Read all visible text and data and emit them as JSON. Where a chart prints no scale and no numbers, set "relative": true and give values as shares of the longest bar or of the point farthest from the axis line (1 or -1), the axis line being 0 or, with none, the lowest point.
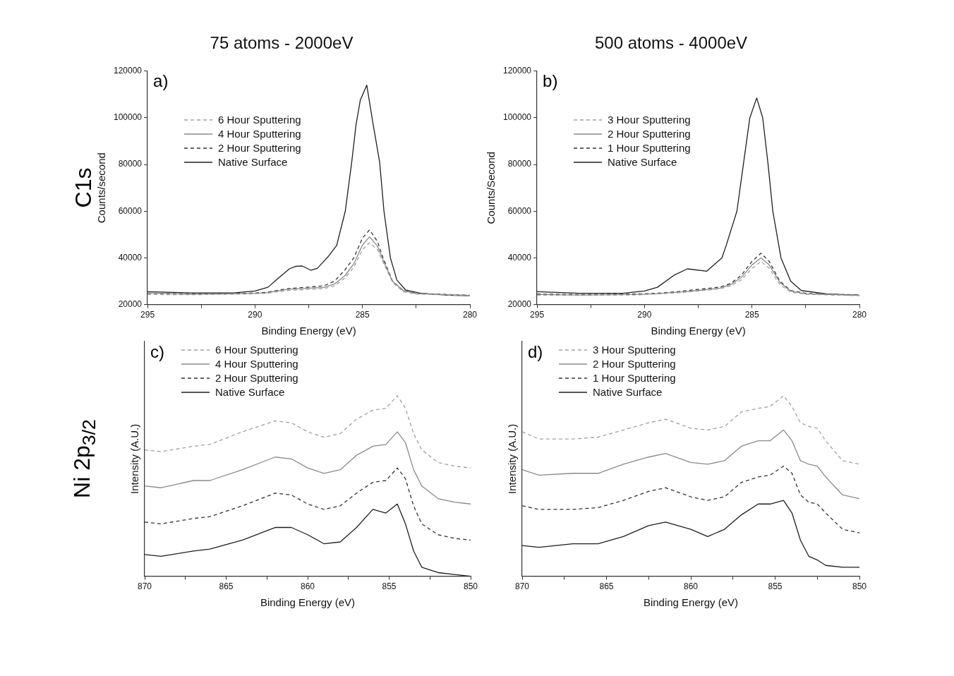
{
  "chart_data": [
    {
      "type": "line",
      "title": "75 atoms - 2000eV",
      "xlabel": "Binding Energy (eV)",
      "ylabel": "Counts/second",
      "annotations": [
        "a)",
        "C1s"
      ],
      "xlim": [
        295,
        280
      ],
      "xticks": [
        295,
        {
          "value": 292.5,
          "label": null
        },
        290,
        {
          "value": 287.5,
          "label": null
        },
        285,
        {
          "value": 282.5,
          "label": null
        },
        280
      ],
      "ylim": [
        20000,
        120000
      ],
      "yticks": [
        20000,
        40000,
        60000,
        80000,
        100000,
        120000
      ],
      "grid": false,
      "legend": "top left",
      "marker": "none",
      "series": [
        {
          "name": "6 Hour Sputtering",
          "color": "#a0a0a0",
          "line_style": "dashed",
          "x": [
            295,
            293,
            290.5,
            289.5,
            288.5,
            287.5,
            286.8,
            286.3,
            285.8,
            285.4,
            285.0,
            284.67,
            284.3,
            284.04,
            283.6,
            283.1,
            282.5,
            281,
            280
          ],
          "values": [
            24300,
            24200,
            24500,
            24800,
            26000,
            26500,
            26800,
            28000,
            31500,
            36000,
            43500,
            46500,
            43500,
            38000,
            29500,
            25500,
            24500,
            24100,
            23800
          ]
        },
        {
          "name": "4 Hour Sputtering",
          "color": "#8a8a8a",
          "line_style": "solid",
          "x": [
            295,
            293,
            290.5,
            289.5,
            288.5,
            287.5,
            286.8,
            286.3,
            285.8,
            285.4,
            285.0,
            284.67,
            284.3,
            284.04,
            283.6,
            283.1,
            282.5,
            281,
            280
          ],
          "values": [
            25000,
            24400,
            24700,
            25000,
            26500,
            27000,
            27300,
            28800,
            32500,
            37500,
            45500,
            49000,
            45000,
            39000,
            30000,
            26000,
            24700,
            24200,
            23900
          ]
        },
        {
          "name": "2 Hour Sputtering",
          "color": "#333333",
          "line_style": "dashed",
          "x": [
            295,
            293,
            290.5,
            289.5,
            288.5,
            287.5,
            286.8,
            286.3,
            285.8,
            285.4,
            285.0,
            284.67,
            284.3,
            284.04,
            283.6,
            283.1,
            282.5,
            281,
            280
          ],
          "values": [
            24800,
            24600,
            24800,
            25200,
            26800,
            27500,
            28000,
            30000,
            35000,
            40000,
            48500,
            52000,
            47000,
            40000,
            30000,
            26000,
            24800,
            24300,
            24000
          ]
        },
        {
          "name": "Native Surface",
          "color": "#1e1e1e",
          "line_style": "solid",
          "x": [
            295,
            293,
            291,
            290,
            289.4,
            289,
            288.4,
            288.1,
            287.8,
            287.4,
            287.1,
            286.8,
            286.6,
            286.2,
            285.8,
            285.5,
            285.3,
            285.1,
            284.8,
            284.5,
            284.2,
            284,
            283.7,
            283.4,
            283,
            282.3,
            281,
            280
          ],
          "values": [
            25500,
            25000,
            25000,
            25800,
            27400,
            30600,
            35300,
            36400,
            36500,
            34700,
            35500,
            38500,
            40500,
            45300,
            60000,
            81000,
            97000,
            107600,
            114000,
            97000,
            81000,
            60000,
            40000,
            30500,
            26300,
            24800,
            24000,
            23800
          ]
        }
      ]
    },
    {
      "type": "line",
      "title": "500 atoms - 4000eV",
      "xlabel": "Binding Energy (eV)",
      "ylabel": "Counts/Second",
      "annotations": [
        "b)"
      ],
      "xlim": [
        295,
        280
      ],
      "xticks": [
        295,
        {
          "value": 292.5,
          "label": null
        },
        290,
        {
          "value": 287.5,
          "label": null
        },
        285,
        {
          "value": 282.5,
          "label": null
        },
        280
      ],
      "ylim": [
        20000,
        120000
      ],
      "yticks": [
        20000,
        40000,
        60000,
        80000,
        100000,
        120000
      ],
      "grid": false,
      "legend": "top left",
      "marker": "none",
      "series": [
        {
          "name": "3 Hour Sputtering",
          "color": "#a0a0a0",
          "line_style": "dashed",
          "x": [
            295,
            293,
            290.5,
            289.5,
            288.5,
            287.5,
            286.5,
            286,
            285.5,
            285,
            284.58,
            284.2,
            283.7,
            283.2,
            282.5,
            281,
            280
          ],
          "values": [
            24000,
            23900,
            24100,
            24500,
            25000,
            25800,
            26700,
            28000,
            30500,
            35500,
            38500,
            35500,
            28500,
            25300,
            24400,
            24000,
            23800
          ]
        },
        {
          "name": "2 Hour Sputtering",
          "color": "#8a8a8a",
          "line_style": "solid",
          "x": [
            295,
            293,
            290.5,
            289.5,
            288.5,
            287.5,
            286.5,
            286,
            285.5,
            285,
            284.58,
            284.2,
            283.7,
            283.2,
            282.5,
            281,
            280
          ],
          "values": [
            24300,
            24100,
            24300,
            24600,
            25300,
            26000,
            27000,
            28500,
            31500,
            37000,
            40000,
            37000,
            29500,
            25800,
            24600,
            24200,
            24000
          ]
        },
        {
          "name": "1 Hour Sputtering",
          "color": "#333333",
          "line_style": "dashed",
          "x": [
            295,
            293,
            290.5,
            289.5,
            288.5,
            287.5,
            286.5,
            286,
            285.5,
            285,
            284.58,
            284.2,
            283.7,
            283.2,
            282.5,
            281,
            280
          ],
          "values": [
            24500,
            24300,
            24500,
            24800,
            25500,
            26500,
            27500,
            29000,
            32500,
            38500,
            42000,
            38500,
            30000,
            26000,
            24800,
            24300,
            24200
          ]
        },
        {
          "name": "Native Surface",
          "color": "#1e1e1e",
          "line_style": "solid",
          "x": [
            295,
            293,
            291,
            290,
            289.4,
            288.6,
            288,
            287.1,
            286.4,
            286.2,
            285.7,
            285.4,
            285.1,
            284.78,
            284.5,
            284.25,
            284.03,
            283.65,
            283.2,
            282.7,
            281.5,
            280
          ],
          "values": [
            25500,
            24800,
            24800,
            25800,
            27400,
            32700,
            35300,
            34300,
            40000,
            45300,
            60000,
            80000,
            100000,
            108500,
            100000,
            80000,
            60000,
            40000,
            30000,
            26000,
            24500,
            24000
          ]
        }
      ]
    },
    {
      "type": "line",
      "xlabel": "Binding Energy (eV)",
      "ylabel": "Intensity (A.U.)",
      "annotations": [
        "c)",
        "Ni 2p$_{3/2}$"
      ],
      "xlim": [
        870,
        850
      ],
      "xticks": [
        870,
        {
          "value": 867.5,
          "label": null
        },
        865,
        {
          "value": 862.5,
          "label": null
        },
        860,
        {
          "value": 857.5,
          "label": null
        },
        855,
        {
          "value": 852.5,
          "label": null
        },
        850
      ],
      "relative": true,
      "grid": false,
      "legend": "top left",
      "marker": "none",
      "x": [
        870,
        869,
        867,
        866,
        864,
        862,
        861,
        860,
        859,
        858,
        857,
        856,
        855.2,
        854.5,
        854,
        853.5,
        853,
        852,
        851,
        850
      ],
      "series": [
        {
          "name": "6 Hour Sputtering",
          "color": "#a0a0a0",
          "line_style": "dashed",
          "values": [
            0.7,
            0.69,
            0.72,
            0.73,
            0.8,
            0.86,
            0.85,
            0.8,
            0.77,
            0.79,
            0.87,
            0.92,
            0.93,
            1,
            0.93,
            0.79,
            0.7,
            0.63,
            0.61,
            0.6
          ]
        },
        {
          "name": "4 Hour Sputtering",
          "color": "#8a8a8a",
          "line_style": "solid",
          "values": [
            0.5,
            0.49,
            0.53,
            0.53,
            0.59,
            0.66,
            0.65,
            0.6,
            0.57,
            0.59,
            0.67,
            0.72,
            0.73,
            0.8,
            0.74,
            0.59,
            0.5,
            0.43,
            0.41,
            0.4
          ]
        },
        {
          "name": "2 Hour Sputtering",
          "color": "#333333",
          "line_style": "dashed",
          "values": [
            0.3,
            0.29,
            0.32,
            0.33,
            0.39,
            0.46,
            0.45,
            0.4,
            0.37,
            0.39,
            0.46,
            0.52,
            0.53,
            0.6,
            0.54,
            0.39,
            0.29,
            0.23,
            0.21,
            0.2
          ]
        },
        {
          "name": "Native Surface",
          "color": "#1e1e1e",
          "line_style": "solid",
          "values": [
            0.12,
            0.11,
            0.14,
            0.15,
            0.2,
            0.27,
            0.27,
            0.23,
            0.18,
            0.19,
            0.27,
            0.37,
            0.35,
            0.4,
            0.29,
            0.14,
            0.05,
            0.02,
            0.01,
            0
          ]
        }
      ]
    },
    {
      "type": "line",
      "xlabel": "Binding Energy (eV)",
      "ylabel": "Intensity (A.U.)",
      "annotations": [
        "d)"
      ],
      "xlim": [
        870,
        850
      ],
      "xticks": [
        870,
        {
          "value": 867.5,
          "label": null
        },
        865,
        {
          "value": 862.5,
          "label": null
        },
        860,
        {
          "value": 857.5,
          "label": null
        },
        855,
        {
          "value": 852.5,
          "label": null
        },
        850
      ],
      "relative": true,
      "grid": false,
      "legend": "top left",
      "marker": "none",
      "x": [
        870,
        869,
        867,
        865.5,
        864,
        862.5,
        861.5,
        860,
        859,
        858,
        857,
        856,
        855.3,
        854.5,
        854,
        853.5,
        853,
        852.5,
        852,
        851,
        850
      ],
      "series": [
        {
          "name": "3 Hour Sputtering",
          "color": "#a0a0a0",
          "line_style": "dashed",
          "values": [
            0.8,
            0.76,
            0.76,
            0.77,
            0.81,
            0.85,
            0.87,
            0.82,
            0.81,
            0.83,
            0.91,
            0.93,
            0.94,
            1,
            0.94,
            0.85,
            0.83,
            0.82,
            0.75,
            0.64,
            0.62
          ]
        },
        {
          "name": "2 Hour Sputtering",
          "color": "#8a8a8a",
          "line_style": "solid",
          "values": [
            0.59,
            0.56,
            0.57,
            0.57,
            0.62,
            0.66,
            0.68,
            0.63,
            0.62,
            0.64,
            0.72,
            0.75,
            0.75,
            0.81,
            0.75,
            0.64,
            0.62,
            0.61,
            0.55,
            0.45,
            0.43
          ]
        },
        {
          "name": "1 Hour Sputtering",
          "color": "#333333",
          "line_style": "dashed",
          "values": [
            0.39,
            0.37,
            0.37,
            0.38,
            0.42,
            0.47,
            0.49,
            0.44,
            0.42,
            0.44,
            0.52,
            0.55,
            0.56,
            0.61,
            0.57,
            0.45,
            0.41,
            0.4,
            0.35,
            0.26,
            0.24
          ]
        },
        {
          "name": "Native Surface",
          "color": "#1e1e1e",
          "line_style": "solid",
          "values": [
            0.17,
            0.16,
            0.18,
            0.18,
            0.22,
            0.28,
            0.3,
            0.26,
            0.22,
            0.26,
            0.34,
            0.4,
            0.4,
            0.42,
            0.35,
            0.2,
            0.11,
            0.09,
            0.06,
            0.05,
            0.05
          ]
        }
      ]
    }
  ]
}
